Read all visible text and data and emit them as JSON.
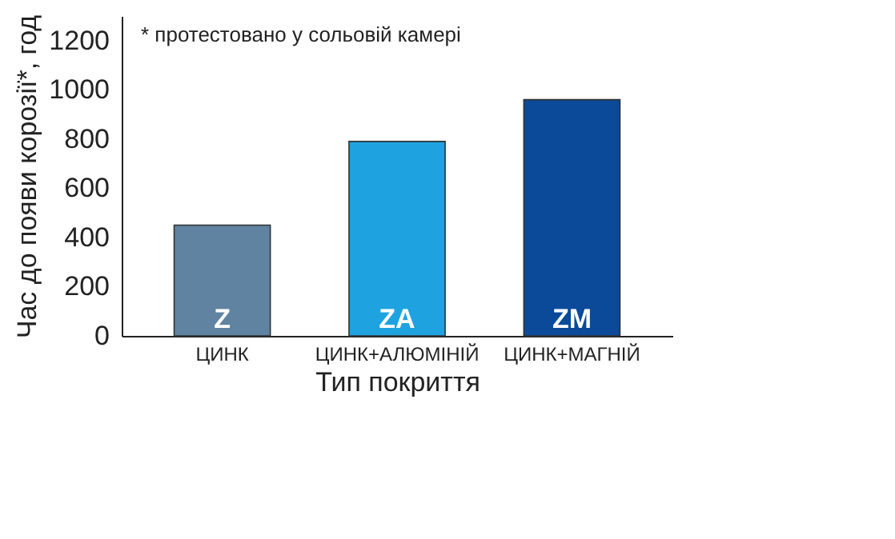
{
  "chart_data": {
    "type": "bar",
    "xlabel": "Тип покриття",
    "ylabel": "Час до появи корозії*, год",
    "categories": [
      "ЦИНК",
      "ЦИНК+АЛЮМІНІЙ",
      "ЦИНК+МАГНІЙ"
    ],
    "values": [
      450,
      790,
      960
    ],
    "colors": [
      "#5f83a1",
      "#1ea3e0",
      "#0a4a98"
    ],
    "ylim": [
      0,
      1300
    ],
    "yticks": [
      0,
      200,
      400,
      600,
      800,
      1000,
      1200
    ],
    "grid": false,
    "value_labels": [
      "Z",
      "ZA",
      "ZM"
    ],
    "annotations": [
      "* протестовано у сольовій камері"
    ]
  }
}
